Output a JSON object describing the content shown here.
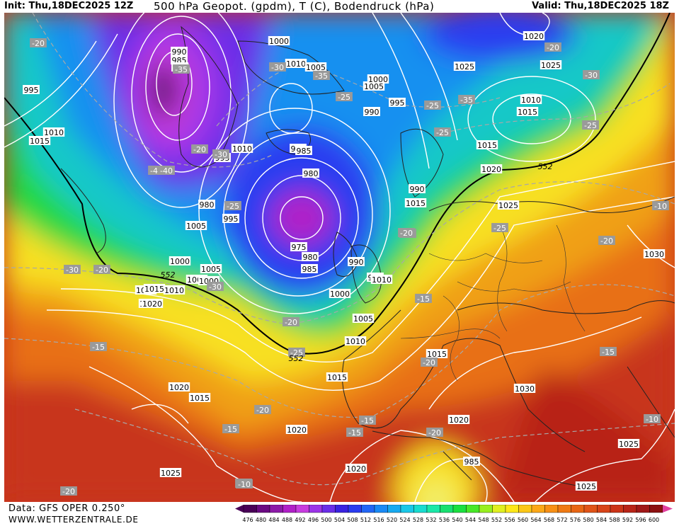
{
  "header": {
    "init": "Init: Thu,18DEC2025 12Z",
    "title": "500 hPa Geopot. (gpdm), T (C), Bodendruck (hPa)",
    "valid": "Valid: Thu,18DEC2025 18Z"
  },
  "footer": {
    "data_source": "Data: GFS OPER 0.250°",
    "website": "WWW.WETTERZENTRALE.DE"
  },
  "legend": {
    "values": [
      "476",
      "480",
      "484",
      "488",
      "492",
      "496",
      "500",
      "504",
      "508",
      "512",
      "516",
      "520",
      "524",
      "528",
      "532",
      "536",
      "540",
      "544",
      "548",
      "552",
      "556",
      "560",
      "564",
      "568",
      "572",
      "576",
      "580",
      "584",
      "588",
      "592",
      "596",
      "600"
    ],
    "colors": [
      "#4a0058",
      "#6b0a82",
      "#8c1aa8",
      "#b020c8",
      "#c83ce0",
      "#9b34e8",
      "#6a2ee8",
      "#3a22e0",
      "#2a3cf0",
      "#2266f5",
      "#1a8af5",
      "#18aaf0",
      "#1ac8e8",
      "#18dcd0",
      "#1ae8a8",
      "#18e070",
      "#1ae040",
      "#48e828",
      "#98f020",
      "#e0f020",
      "#fde81a",
      "#fcc818",
      "#fca818",
      "#f89016",
      "#f07a14",
      "#e86614",
      "#e05418",
      "#d84418",
      "#cc3418",
      "#b82418",
      "#a01818",
      "#8c1010"
    ]
  },
  "pressure_labels": [
    "995",
    "990",
    "985",
    "980",
    "995",
    "1010",
    "1015",
    "1000",
    "1010",
    "1005",
    "1005",
    "1000",
    "985",
    "980",
    "975",
    "980",
    "985",
    "990",
    "995",
    "1000",
    "1005",
    "1010",
    "1015",
    "1020",
    "1025",
    "1030",
    "1015",
    "1020",
    "1025",
    "1010",
    "1015",
    "1010",
    "1005",
    "1015",
    "1025",
    "1030",
    "1020",
    "1015",
    "1025",
    "1020",
    "1030",
    "1025",
    "1020",
    "1025",
    "1020",
    "1010",
    "1005",
    "1000",
    "1015",
    "995",
    "990",
    "985",
    "980",
    "1020",
    "1015",
    "1010",
    "995",
    "990",
    "1000",
    "1005",
    "985",
    "1015",
    "1000"
  ],
  "temperature_labels": [
    "-20",
    "-35",
    "-30",
    "-35",
    "-40",
    "-25",
    "-30",
    "-20",
    "-25",
    "-30",
    "-25",
    "-35",
    "-25",
    "-30",
    "-20",
    "-30",
    "-15",
    "-20",
    "-15",
    "-30",
    "-25",
    "-20",
    "-15",
    "-20",
    "-15",
    "-20",
    "-10",
    "-10",
    "-15",
    "-20",
    "-30",
    "-25",
    "-40",
    "-20",
    "-25",
    "-20",
    "-20",
    "-15",
    "-10"
  ],
  "contour_labels": [
    "552",
    "552",
    "552"
  ]
}
